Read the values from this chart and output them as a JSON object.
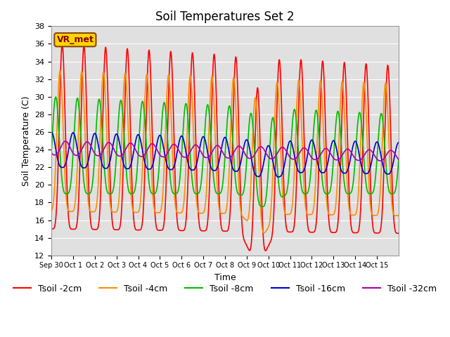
{
  "title": "Soil Temperatures Set 2",
  "xlabel": "Time",
  "ylabel": "Soil Temperature (C)",
  "ylim": [
    12,
    38
  ],
  "xlim": [
    0,
    16
  ],
  "xtick_labels": [
    "Sep 30",
    "Oct 1",
    "Oct 2",
    "Oct 3",
    "Oct 4",
    "Oct 5",
    "Oct 6",
    "Oct 7",
    "Oct 8",
    "Oct 9",
    "Oct 10",
    "Oct 11",
    "Oct 12",
    "Oct 13",
    "Oct 14",
    "Oct 15"
  ],
  "annotation": "VR_met",
  "series_order": [
    "Tsoil -2cm",
    "Tsoil -4cm",
    "Tsoil -8cm",
    "Tsoil -16cm",
    "Tsoil -32cm"
  ],
  "series": {
    "Tsoil -2cm": {
      "color": "#FF0000",
      "lw": 1.2
    },
    "Tsoil -4cm": {
      "color": "#FF8C00",
      "lw": 1.2
    },
    "Tsoil -8cm": {
      "color": "#00BB00",
      "lw": 1.2
    },
    "Tsoil -16cm": {
      "color": "#0000CC",
      "lw": 1.2
    },
    "Tsoil -32cm": {
      "color": "#AA00AA",
      "lw": 1.2
    }
  },
  "bg_color": "#E0E0E0",
  "fig_bg_color": "#FFFFFF",
  "grid_color": "#FFFFFF",
  "title_fontsize": 12,
  "legend_fontsize": 9,
  "axis_label_fontsize": 9
}
